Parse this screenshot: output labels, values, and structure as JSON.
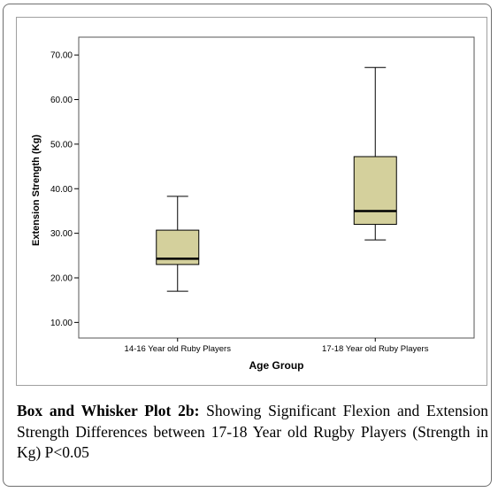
{
  "chart_data": {
    "type": "box",
    "title": "",
    "xlabel": "Age Group",
    "ylabel": "Extension Strength (Kg)",
    "ylim": [
      6.5,
      74.0
    ],
    "yticks": [
      "10.00",
      "20.00",
      "30.00",
      "40.00",
      "50.00",
      "60.00",
      "70.00"
    ],
    "categories": [
      "14-16 Year old Ruby Players",
      "17-18 Year old Ruby Players"
    ],
    "boxes": [
      {
        "category": "14-16 Year old Ruby Players",
        "min": 17.0,
        "q1": 23.0,
        "median": 24.3,
        "q3": 30.7,
        "max": 38.3
      },
      {
        "category": "17-18 Year old Ruby Players",
        "min": 28.5,
        "q1": 32.0,
        "median": 35.0,
        "q3": 47.2,
        "max": 67.2
      }
    ],
    "grid": false,
    "box_color": "#d4d09c"
  },
  "caption": {
    "label": "Box and Whisker Plot 2b:",
    "text": " Showing Significant Flexion and Extension Strength Differences between 17-18 Year old Rugby Players (Strength in Kg) P<0.05"
  }
}
